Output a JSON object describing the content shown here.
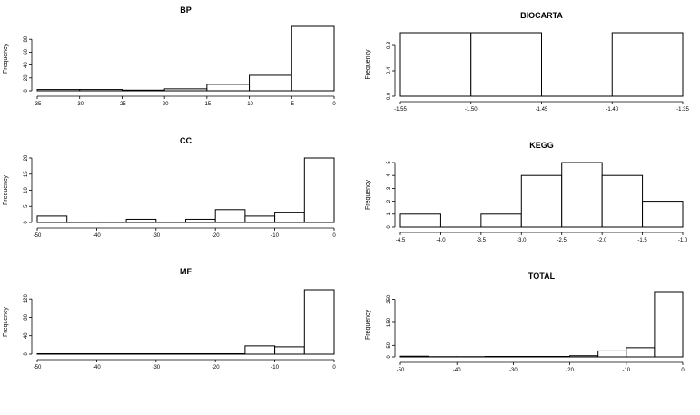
{
  "chart_data": [
    {
      "type": "bar",
      "title": "BP",
      "ylabel": "Frequency",
      "xlim": [
        -35,
        0
      ],
      "ylim": [
        0,
        100
      ],
      "xticks": [
        -35,
        -30,
        -25,
        -20,
        -15,
        -10,
        -5,
        0
      ],
      "yticks": [
        0,
        20,
        40,
        60,
        80
      ],
      "bins": [
        [
          -35,
          -30
        ],
        [
          -30,
          -25
        ],
        [
          -25,
          -20
        ],
        [
          -20,
          -15
        ],
        [
          -15,
          -10
        ],
        [
          -10,
          -5
        ],
        [
          -5,
          0
        ]
      ],
      "values": [
        2,
        2,
        1,
        3,
        10,
        24,
        100
      ]
    },
    {
      "type": "bar",
      "title": "BIOCARTA",
      "ylabel": "Frequency",
      "xlim": [
        -1.55,
        -1.35
      ],
      "ylim": [
        0,
        1
      ],
      "xticks": [
        "-1.55",
        "-1.50",
        "-1.45",
        "-1.40",
        "-1.35"
      ],
      "yticks": [
        "0.0",
        "0.4",
        "0.8"
      ],
      "bins": [
        [
          -1.55,
          -1.5
        ],
        [
          -1.5,
          -1.45
        ],
        [
          -1.45,
          -1.4
        ],
        [
          -1.4,
          -1.35
        ]
      ],
      "values": [
        1,
        1,
        0,
        1
      ]
    },
    {
      "type": "bar",
      "title": "CC",
      "ylabel": "Frequency",
      "xlim": [
        -50,
        0
      ],
      "ylim": [
        0,
        20
      ],
      "xticks": [
        -50,
        -40,
        -30,
        -20,
        -10,
        0
      ],
      "yticks": [
        0,
        5,
        10,
        15,
        20
      ],
      "bins": [
        [
          -50,
          -45
        ],
        [
          -45,
          -40
        ],
        [
          -40,
          -35
        ],
        [
          -35,
          -30
        ],
        [
          -30,
          -25
        ],
        [
          -25,
          -20
        ],
        [
          -20,
          -15
        ],
        [
          -15,
          -10
        ],
        [
          -10,
          -5
        ],
        [
          -5,
          0
        ]
      ],
      "values": [
        2,
        0,
        0,
        1,
        0,
        1,
        4,
        2,
        3,
        20
      ]
    },
    {
      "type": "bar",
      "title": "KEGG",
      "ylabel": "Frequency",
      "xlim": [
        -4.5,
        -1.0
      ],
      "ylim": [
        0,
        5
      ],
      "xticks": [
        "-4.5",
        "-4.0",
        "-3.5",
        "-3.0",
        "-2.5",
        "-2.0",
        "-1.5",
        "-1.0"
      ],
      "yticks": [
        0,
        1,
        2,
        3,
        4,
        5
      ],
      "bins": [
        [
          -4.5,
          -4.0
        ],
        [
          -4.0,
          -3.5
        ],
        [
          -3.5,
          -3.0
        ],
        [
          -3.0,
          -2.5
        ],
        [
          -2.5,
          -2.0
        ],
        [
          -2.0,
          -1.5
        ],
        [
          -1.5,
          -1.0
        ]
      ],
      "values": [
        1,
        0,
        1,
        4,
        5,
        4,
        2
      ]
    },
    {
      "type": "bar",
      "title": "MF",
      "ylabel": "Frequency",
      "xlim": [
        -50,
        0
      ],
      "ylim": [
        0,
        140
      ],
      "xticks": [
        -50,
        -40,
        -30,
        -20,
        -10,
        0
      ],
      "yticks": [
        0,
        40,
        80,
        120
      ],
      "bins": [
        [
          -50,
          -45
        ],
        [
          -45,
          -40
        ],
        [
          -40,
          -35
        ],
        [
          -35,
          -30
        ],
        [
          -30,
          -25
        ],
        [
          -25,
          -20
        ],
        [
          -20,
          -15
        ],
        [
          -15,
          -10
        ],
        [
          -10,
          -5
        ],
        [
          -5,
          0
        ]
      ],
      "values": [
        1,
        1,
        1,
        1,
        1,
        1,
        1,
        18,
        16,
        140
      ]
    },
    {
      "type": "bar",
      "title": "TOTAL",
      "ylabel": "Frequency",
      "xlim": [
        -50,
        0
      ],
      "ylim": [
        0,
        280
      ],
      "xticks": [
        -50,
        -40,
        -30,
        -20,
        -10,
        0
      ],
      "yticks": [
        0,
        50,
        150,
        250
      ],
      "bins": [
        [
          -50,
          -45
        ],
        [
          -45,
          -40
        ],
        [
          -40,
          -35
        ],
        [
          -35,
          -30
        ],
        [
          -30,
          -25
        ],
        [
          -25,
          -20
        ],
        [
          -20,
          -15
        ],
        [
          -15,
          -10
        ],
        [
          -10,
          -5
        ],
        [
          -5,
          0
        ]
      ],
      "values": [
        3,
        1,
        1,
        2,
        2,
        2,
        5,
        26,
        40,
        280
      ]
    }
  ]
}
